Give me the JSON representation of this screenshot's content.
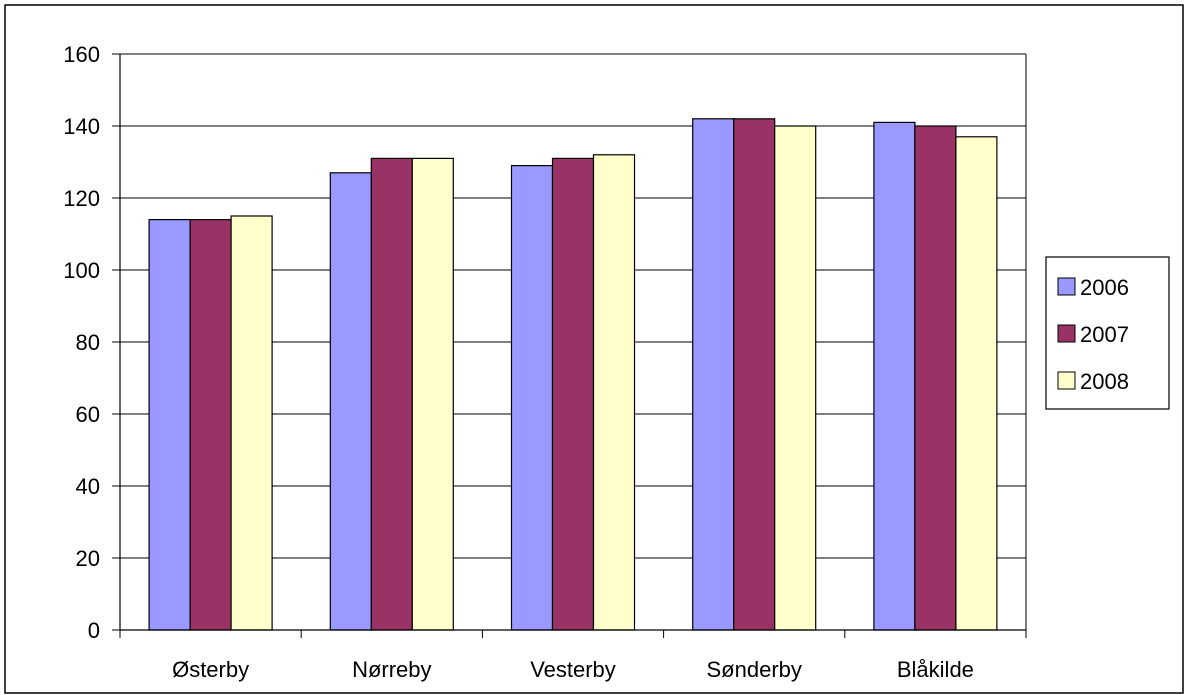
{
  "chart_data": {
    "type": "bar",
    "title": "",
    "xlabel": "",
    "ylabel": "",
    "categories": [
      "Østerby",
      "Nørreby",
      "Vesterby",
      "Sønderby",
      "Blåkilde"
    ],
    "series": [
      {
        "name": "2006",
        "color": "#9999ff",
        "values": [
          114,
          127,
          129,
          142,
          141
        ]
      },
      {
        "name": "2007",
        "color": "#993366",
        "values": [
          114,
          131,
          131,
          142,
          140
        ]
      },
      {
        "name": "2008",
        "color": "#ffffcc",
        "values": [
          115,
          131,
          132,
          140,
          137
        ]
      }
    ],
    "ylim": [
      0,
      160
    ],
    "yticks": [
      0,
      20,
      40,
      60,
      80,
      100,
      120,
      140,
      160
    ],
    "grid": true,
    "legend_position": "right"
  }
}
